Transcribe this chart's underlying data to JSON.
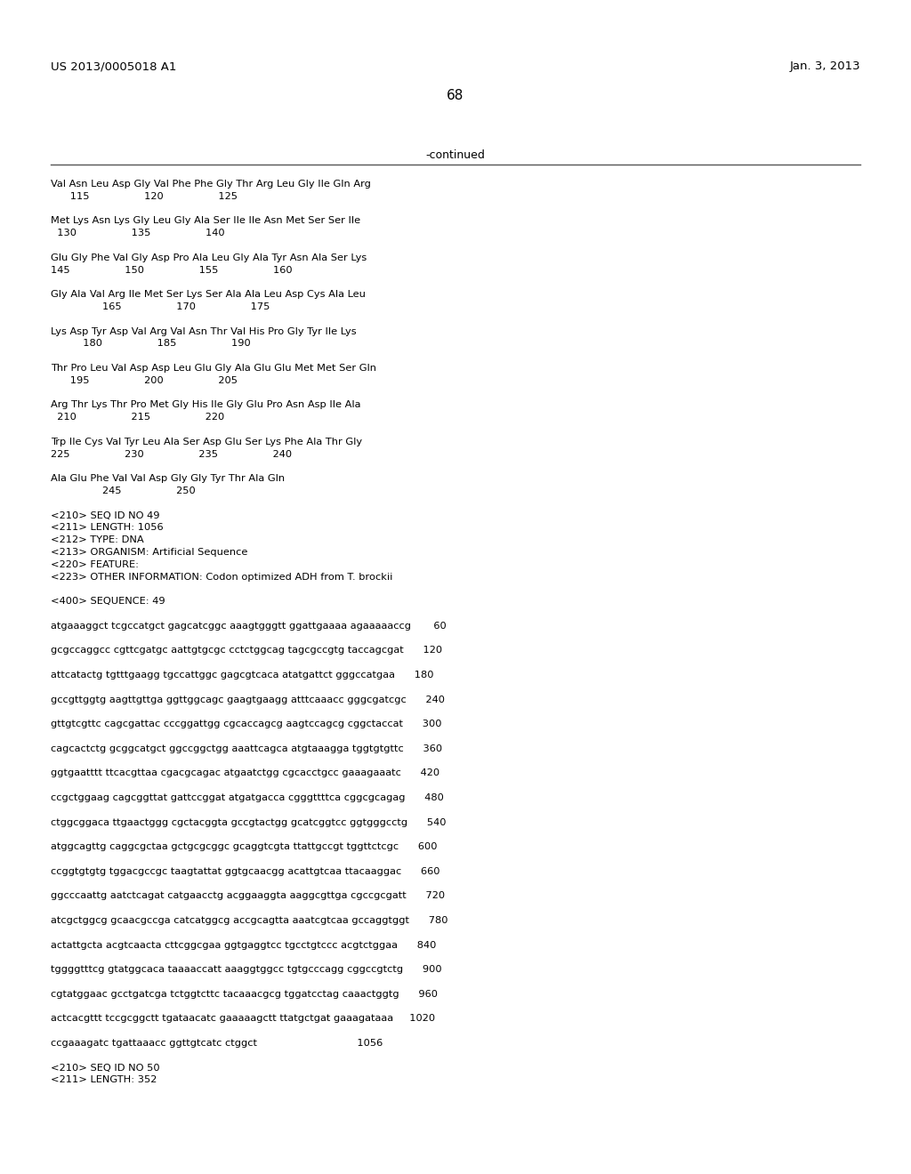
{
  "header_left": "US 2013/0005018 A1",
  "header_right": "Jan. 3, 2013",
  "page_number": "68",
  "continued_label": "-continued",
  "background_color": "#ffffff",
  "text_color": "#000000",
  "lines": [
    "Val Asn Leu Asp Gly Val Phe Phe Gly Thr Arg Leu Gly Ile Gln Arg",
    "      115                 120                 125",
    "",
    "Met Lys Asn Lys Gly Leu Gly Ala Ser Ile Ile Asn Met Ser Ser Ile",
    "  130                 135                 140",
    "",
    "Glu Gly Phe Val Gly Asp Pro Ala Leu Gly Ala Tyr Asn Ala Ser Lys",
    "145                 150                 155                 160",
    "",
    "Gly Ala Val Arg Ile Met Ser Lys Ser Ala Ala Leu Asp Cys Ala Leu",
    "                165                 170                 175",
    "",
    "Lys Asp Tyr Asp Val Arg Val Asn Thr Val His Pro Gly Tyr Ile Lys",
    "          180                 185                 190",
    "",
    "Thr Pro Leu Val Asp Asp Leu Glu Gly Ala Glu Glu Met Met Ser Gln",
    "      195                 200                 205",
    "",
    "Arg Thr Lys Thr Pro Met Gly His Ile Gly Glu Pro Asn Asp Ile Ala",
    "  210                 215                 220",
    "",
    "Trp Ile Cys Val Tyr Leu Ala Ser Asp Glu Ser Lys Phe Ala Thr Gly",
    "225                 230                 235                 240",
    "",
    "Ala Glu Phe Val Val Asp Gly Gly Tyr Thr Ala Gln",
    "                245                 250",
    "",
    "<210> SEQ ID NO 49",
    "<211> LENGTH: 1056",
    "<212> TYPE: DNA",
    "<213> ORGANISM: Artificial Sequence",
    "<220> FEATURE:",
    "<223> OTHER INFORMATION: Codon optimized ADH from T. brockii",
    "",
    "<400> SEQUENCE: 49",
    "",
    "atgaaaggct tcgccatgct gagcatcggc aaagtgggtt ggattgaaaa agaaaaaccg       60",
    "",
    "gcgccaggcc cgttcgatgc aattgtgcgc cctctggcag tagcgccgtg taccagcgat      120",
    "",
    "attcatactg tgtttgaagg tgccattggc gagcgtcaca atatgattct gggccatgaa      180",
    "",
    "gccgttggtg aagttgttga ggttggcagc gaagtgaagg atttcaaacc gggcgatcgc      240",
    "",
    "gttgtcgttc cagcgattac cccggattgg cgcaccagcg aagtccagcg cggctaccat      300",
    "",
    "cagcactctg gcggcatgct ggccggctgg aaattcagca atgtaaagga tggtgtgttc      360",
    "",
    "ggtgaatttt ttcacgttaa cgacgcagac atgaatctgg cgcacctgcc gaaagaaatc      420",
    "",
    "ccgctggaag cagcggttat gattccggat atgatgacca cgggttttca cggcgcagag      480",
    "",
    "ctggcggaca ttgaactggg cgctacggta gccgtactgg gcatcggtcc ggtgggcctg      540",
    "",
    "atggcagttg caggcgctaa gctgcgcggc gcaggtcgta ttattgccgt tggttctcgc      600",
    "",
    "ccggtgtgtg tggacgccgc taagtattat ggtgcaacgg acattgtcaa ttacaaggac      660",
    "",
    "ggcccaattg aatctcagat catgaacctg acggaaggta aaggcgttga cgccgcgatt      720",
    "",
    "atcgctggcg gcaacgccga catcatggcg accgcagtta aaatcgtcaa gccaggtggt      780",
    "",
    "actattgcta acgtcaacta cttcggcgaa ggtgaggtcc tgcctgtccc acgtctggaa      840",
    "",
    "tggggtttcg gtatggcaca taaaaccatt aaaggtggcc tgtgcccagg cggccgtctg      900",
    "",
    "cgtatggaac gcctgatcga tctggtcttc tacaaacgcg tggatcctag caaactggtg      960",
    "",
    "actcacgttt tccgcggctt tgataacatc gaaaaagctt ttatgctgat gaaagataaa     1020",
    "",
    "ccgaaagatc tgattaaacc ggttgtcatc ctggct                               1056",
    "",
    "<210> SEQ ID NO 50",
    "<211> LENGTH: 352"
  ]
}
